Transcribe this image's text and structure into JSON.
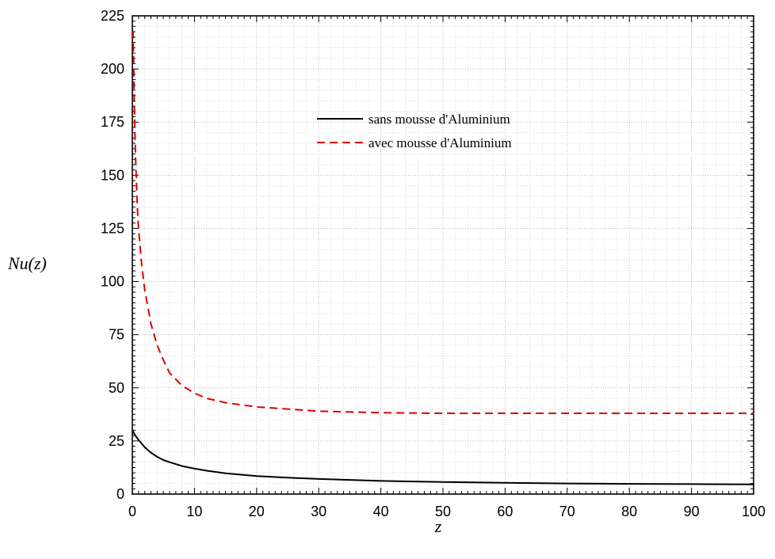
{
  "chart_data": {
    "type": "line",
    "xlabel": "z",
    "ylabel": "Nu(z)",
    "xlim": [
      0,
      100
    ],
    "ylim": [
      0,
      225
    ],
    "xticks": [
      0,
      10,
      20,
      30,
      40,
      50,
      60,
      70,
      80,
      90,
      100
    ],
    "yticks": [
      0,
      25,
      50,
      75,
      100,
      125,
      150,
      175,
      200,
      225
    ],
    "grid": true,
    "legend_position": "top-center",
    "series": [
      {
        "name": "sans mousse d'Aluminium",
        "color": "#000000",
        "line_style": "solid",
        "x": [
          0,
          0.5,
          1,
          2,
          3,
          4,
          5,
          6,
          8,
          10,
          12,
          15,
          20,
          25,
          30,
          40,
          50,
          60,
          70,
          80,
          90,
          100
        ],
        "y": [
          30,
          27.5,
          25.5,
          22,
          19.5,
          17.5,
          16,
          15,
          13.2,
          12,
          11,
          9.8,
          8.5,
          7.7,
          7.1,
          6.2,
          5.7,
          5.3,
          5.0,
          4.8,
          4.7,
          4.6
        ]
      },
      {
        "name": "avec mousse d'Aluminium",
        "color": "#dd0000",
        "line_style": "dashed",
        "x": [
          0.1,
          0.2,
          0.3,
          0.5,
          0.8,
          1,
          1.5,
          2,
          3,
          4,
          5,
          6,
          8,
          10,
          12,
          15,
          20,
          25,
          30,
          40,
          50,
          60,
          70,
          80,
          90,
          100
        ],
        "y": [
          218,
          205,
          185,
          160,
          135,
          125,
          108,
          96,
          80,
          70,
          63,
          57,
          51,
          47.5,
          45,
          43,
          41,
          40,
          39,
          38.3,
          38,
          38,
          38,
          38,
          38,
          38
        ]
      }
    ]
  }
}
